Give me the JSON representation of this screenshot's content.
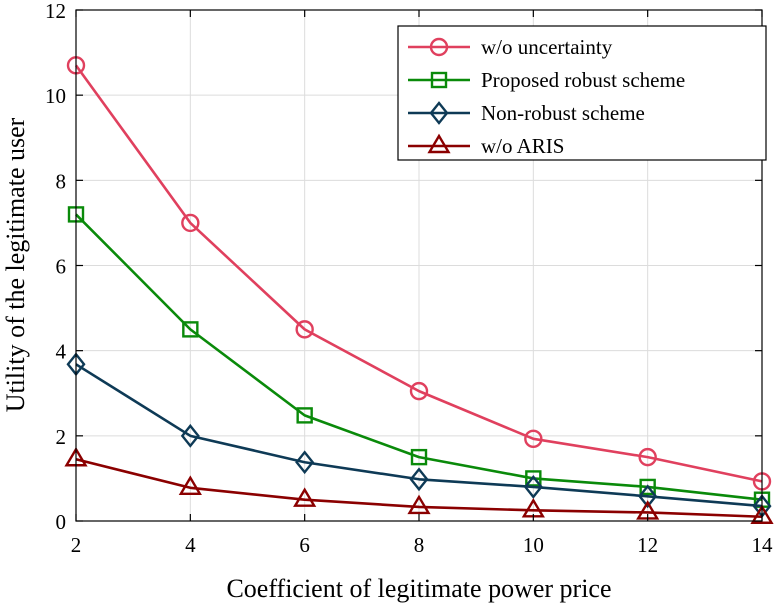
{
  "chart_data": {
    "type": "line",
    "title": "",
    "xlabel": "Coefficient of legitimate power price",
    "ylabel": "Utility of the legitimate user",
    "x": [
      2,
      4,
      6,
      8,
      10,
      12,
      14
    ],
    "xlim": [
      2,
      14
    ],
    "ylim": [
      0,
      12
    ],
    "xticks": [
      "2",
      "4",
      "6",
      "8",
      "10",
      "12",
      "14"
    ],
    "yticks": [
      "0",
      "2",
      "4",
      "6",
      "8",
      "10",
      "12"
    ],
    "grid": true,
    "legend_position": "top-right",
    "series": [
      {
        "name": "w/o uncertainty",
        "marker": "circle",
        "color": "#e0405e",
        "values": [
          10.7,
          7.0,
          4.5,
          3.05,
          1.93,
          1.5,
          0.93
        ]
      },
      {
        "name": "Proposed robust scheme",
        "marker": "square",
        "color": "#0a8a0a",
        "values": [
          7.2,
          4.5,
          2.48,
          1.5,
          1.0,
          0.8,
          0.5
        ]
      },
      {
        "name": "Non-robust scheme",
        "marker": "diamond",
        "color": "#0e3a56",
        "values": [
          3.68,
          2.0,
          1.38,
          0.98,
          0.8,
          0.58,
          0.35
        ]
      },
      {
        "name": "w/o ARIS",
        "marker": "triangle",
        "color": "#8b0000",
        "values": [
          1.45,
          0.78,
          0.5,
          0.33,
          0.25,
          0.2,
          0.1
        ]
      }
    ]
  }
}
